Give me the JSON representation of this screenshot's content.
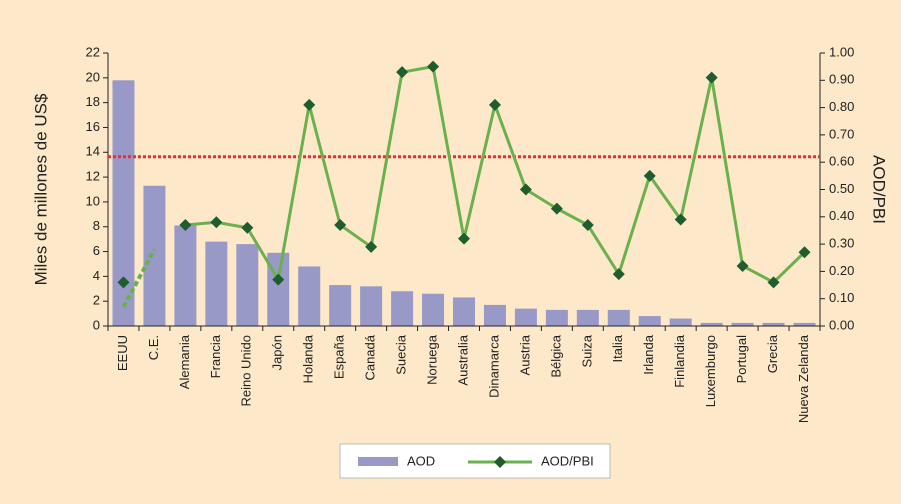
{
  "chart_data": {
    "type": "bar_line",
    "categories": [
      "EEUU",
      "C.E.",
      "Alemania",
      "Francia",
      "Reino Unido",
      "Japón",
      "Holanda",
      "España",
      "Canadá",
      "Suecia",
      "Noruega",
      "Australia",
      "Dinamarca",
      "Austria",
      "Bélgica",
      "Suiza",
      "Italia",
      "Irlanda",
      "Finlandia",
      "Luxemburgo",
      "Portugal",
      "Grecia",
      "Nueva Zelanda"
    ],
    "series": [
      {
        "name": "AOD",
        "type": "bar",
        "color": "#9999c8",
        "values": [
          19.8,
          11.3,
          8.1,
          6.8,
          6.6,
          5.9,
          4.8,
          3.3,
          3.2,
          2.8,
          2.6,
          2.3,
          1.7,
          1.4,
          1.3,
          1.3,
          1.3,
          0.8,
          0.6,
          0.25,
          0.25,
          0.25,
          0.25
        ]
      },
      {
        "name": "AOD/PBI",
        "type": "line",
        "axis": "y2",
        "color": "#6ab04c",
        "marker_color": "#1f5c2e",
        "values": [
          0.16,
          null,
          0.37,
          0.38,
          0.36,
          0.17,
          0.81,
          0.37,
          0.29,
          0.93,
          0.95,
          0.32,
          0.81,
          0.5,
          0.43,
          0.37,
          0.19,
          0.55,
          0.39,
          0.91,
          0.22,
          0.16,
          0.27
        ]
      }
    ],
    "ylabel": "Miles de millones de US$",
    "y2label": "AOD/PBI",
    "ylim": [
      0,
      22
    ],
    "yticks": [
      0,
      2,
      4,
      6,
      8,
      10,
      12,
      14,
      16,
      18,
      20,
      22
    ],
    "y2lim": [
      0,
      1
    ],
    "y2ticks": [
      {
        "value": 0,
        "label": "0.00"
      },
      {
        "value": 0.1,
        "label": "0.10"
      },
      {
        "value": 0.2,
        "label": "0.20"
      },
      {
        "value": 0.3,
        "label": "0.30"
      },
      {
        "value": 0.4,
        "label": "0.40"
      },
      {
        "value": 0.5,
        "label": "0.50"
      },
      {
        "value": 0.6,
        "label": "0.60"
      },
      {
        "value": 0.7,
        "label": "0.70"
      },
      {
        "value": 0.8,
        "label": "0.80"
      },
      {
        "value": 0.9,
        "label": "0.90"
      },
      {
        "value": 1,
        "label": "1.00"
      }
    ],
    "reference_line": {
      "axis": "y2",
      "value": 0.62,
      "color": "#e53030"
    },
    "dashed_segment": {
      "axis": "y2",
      "color": "#6ab04c",
      "x": [
        0,
        1
      ],
      "values": [
        0.07,
        0.28
      ]
    },
    "legend": "bottom"
  }
}
